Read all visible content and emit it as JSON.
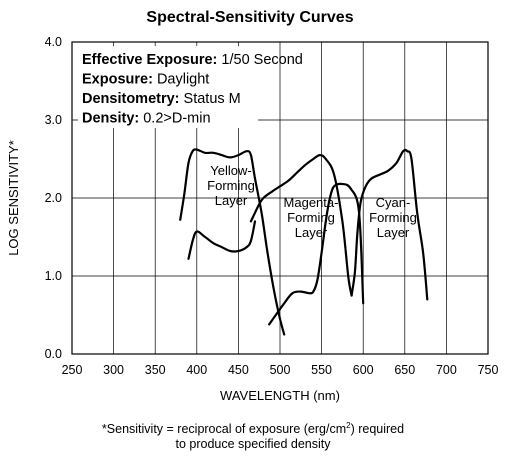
{
  "chart_data": {
    "type": "line",
    "title": "Spectral-Sensitivity Curves",
    "xlabel": "WAVELENGTH (nm)",
    "ylabel": "LOG SENSITIVITY*",
    "xlim": [
      250,
      750
    ],
    "ylim": [
      0.0,
      4.0
    ],
    "x_ticks": [
      "250",
      "300",
      "350",
      "400",
      "450",
      "500",
      "550",
      "600",
      "650",
      "700",
      "750"
    ],
    "y_ticks": [
      "0.0",
      "1.0",
      "2.0",
      "3.0",
      "4.0"
    ],
    "grid": true,
    "legend_box": [
      {
        "bold": "Effective Exposure:",
        "value": "1/50 Second"
      },
      {
        "bold": "Exposure:",
        "value": "Daylight"
      },
      {
        "bold": "Densitometry:",
        "value": "Status M"
      },
      {
        "bold": "Density:",
        "value": "0.2>D-min"
      }
    ],
    "series": [
      {
        "name": "Yellow-Forming Layer",
        "label_lines": [
          "Yellow-",
          "Forming",
          "Layer"
        ],
        "segments": [
          [
            [
              380,
              1.72
            ],
            [
              385,
              2.05
            ],
            [
              390,
              2.45
            ],
            [
              395,
              2.6
            ],
            [
              400,
              2.62
            ],
            [
              410,
              2.58
            ],
            [
              420,
              2.58
            ],
            [
              430,
              2.55
            ],
            [
              440,
              2.52
            ],
            [
              450,
              2.55
            ],
            [
              460,
              2.6
            ],
            [
              465,
              2.55
            ],
            [
              470,
              2.25
            ],
            [
              478,
              1.8
            ],
            [
              485,
              1.3
            ],
            [
              493,
              0.8
            ],
            [
              500,
              0.45
            ],
            [
              505,
              0.25
            ]
          ],
          [
            [
              390,
              1.22
            ],
            [
              395,
              1.45
            ],
            [
              400,
              1.57
            ],
            [
              410,
              1.5
            ],
            [
              420,
              1.42
            ],
            [
              430,
              1.37
            ],
            [
              440,
              1.32
            ],
            [
              450,
              1.32
            ],
            [
              460,
              1.37
            ],
            [
              465,
              1.45
            ],
            [
              470,
              1.7
            ]
          ]
        ]
      },
      {
        "name": "Magenta-Forming Layer",
        "label_lines": [
          "Magenta-",
          "Forming",
          "Layer"
        ],
        "segments": [
          [
            [
              487,
              0.38
            ],
            [
              495,
              0.5
            ],
            [
              505,
              0.65
            ],
            [
              515,
              0.78
            ],
            [
              525,
              0.8
            ],
            [
              535,
              0.78
            ],
            [
              540,
              0.8
            ],
            [
              545,
              0.95
            ],
            [
              550,
              1.3
            ],
            [
              555,
              1.7
            ],
            [
              560,
              2.0
            ],
            [
              565,
              2.15
            ],
            [
              575,
              2.18
            ],
            [
              585,
              2.12
            ],
            [
              595,
              1.82
            ],
            [
              600,
              0.65
            ]
          ],
          [
            [
              465,
              1.7
            ],
            [
              475,
              1.92
            ],
            [
              480,
              2.0
            ],
            [
              490,
              2.08
            ],
            [
              500,
              2.15
            ],
            [
              510,
              2.22
            ],
            [
              520,
              2.32
            ],
            [
              530,
              2.42
            ],
            [
              540,
              2.5
            ],
            [
              548,
              2.55
            ],
            [
              555,
              2.5
            ],
            [
              565,
              2.3
            ],
            [
              575,
              1.7
            ],
            [
              582,
              1.0
            ],
            [
              586,
              0.75
            ]
          ]
        ]
      },
      {
        "name": "Cyan-Forming Layer",
        "label_lines": [
          "Cyan-",
          "Forming",
          "Layer"
        ],
        "segments": [
          [
            [
              586,
              0.75
            ],
            [
              590,
              1.05
            ],
            [
              593,
              1.55
            ],
            [
              597,
              1.95
            ],
            [
              603,
              2.15
            ],
            [
              610,
              2.25
            ],
            [
              620,
              2.3
            ],
            [
              630,
              2.35
            ],
            [
              640,
              2.45
            ],
            [
              648,
              2.6
            ],
            [
              653,
              2.6
            ],
            [
              658,
              2.5
            ],
            [
              665,
              1.8
            ],
            [
              672,
              1.3
            ],
            [
              677,
              0.7
            ]
          ]
        ]
      }
    ],
    "footnote": {
      "line1_before_sup": "*Sensitivity = reciprocal of exposure (erg/cm",
      "sup": "2",
      "line1_after_sup": ") required",
      "line2": "to produce specified density"
    }
  }
}
